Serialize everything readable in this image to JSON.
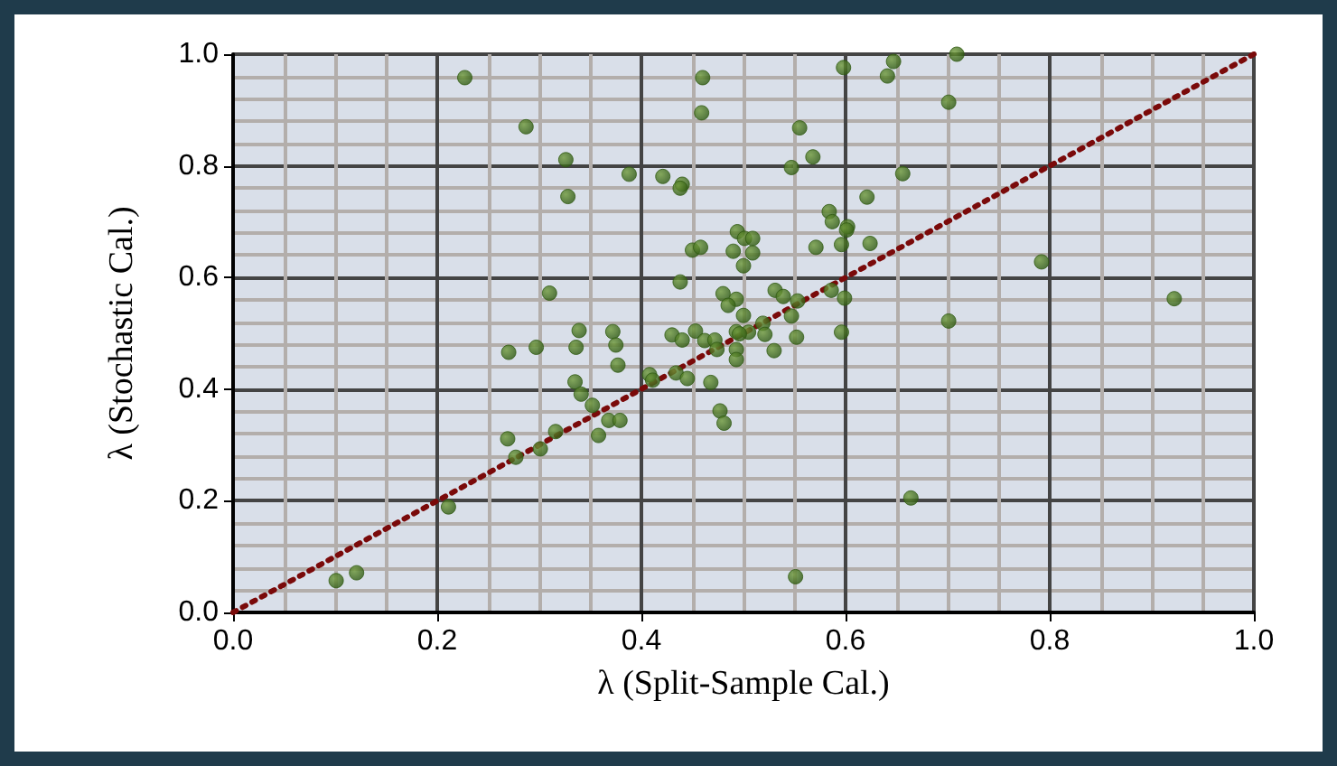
{
  "chart_data": {
    "type": "scatter",
    "xlabel": "λ (Split-Sample Cal.)",
    "ylabel": "λ (Stochastic Cal.)",
    "xlim": [
      0,
      1
    ],
    "ylim": [
      0,
      1
    ],
    "xticks": [
      {
        "value": 0,
        "label": "0.0"
      },
      {
        "value": 0.2,
        "label": "0.2"
      },
      {
        "value": 0.4,
        "label": "0.4"
      },
      {
        "value": 0.6,
        "label": "0.6"
      },
      {
        "value": 0.8,
        "label": "0.8"
      },
      {
        "value": 1,
        "label": "1.0"
      }
    ],
    "yticks": [
      {
        "value": 0,
        "label": "0.0"
      },
      {
        "value": 0.2,
        "label": "0.2"
      },
      {
        "value": 0.4,
        "label": "0.4"
      },
      {
        "value": 0.6,
        "label": "0.6"
      },
      {
        "value": 0.8,
        "label": "0.8"
      },
      {
        "value": 1,
        "label": "1.0"
      }
    ],
    "grid": true,
    "marker": "circle",
    "series": [
      {
        "color": "#2f5a12",
        "x": [
          0.227,
          0.46,
          0.459,
          0.287,
          0.326,
          0.388,
          0.421,
          0.44,
          0.438,
          0.328,
          0.494,
          0.501,
          0.509,
          0.45,
          0.458,
          0.49,
          0.509,
          0.5,
          0.438,
          0.31,
          0.48,
          0.493,
          0.485,
          0.5,
          0.493,
          0.339,
          0.372,
          0.43,
          0.44,
          0.453,
          0.462,
          0.472,
          0.27,
          0.297,
          0.336,
          0.375,
          0.377,
          0.474,
          0.493,
          0.493,
          0.505,
          0.335,
          0.341,
          0.352,
          0.368,
          0.379,
          0.358,
          0.316,
          0.269,
          0.277,
          0.301,
          0.408,
          0.411,
          0.434,
          0.445,
          0.468,
          0.477,
          0.481,
          0.211,
          0.101,
          0.121,
          0.598,
          0.647,
          0.641,
          0.709,
          0.701,
          0.555,
          0.568,
          0.547,
          0.656,
          0.621,
          0.584,
          0.587,
          0.602,
          0.601,
          0.571,
          0.596,
          0.624,
          0.792,
          0.922,
          0.701,
          0.531,
          0.539,
          0.553,
          0.586,
          0.599,
          0.547,
          0.519,
          0.521,
          0.496,
          0.552,
          0.596,
          0.53,
          0.664,
          0.551
        ],
        "values": [
          0.958,
          0.958,
          0.895,
          0.87,
          0.811,
          0.785,
          0.781,
          0.767,
          0.76,
          0.745,
          0.682,
          0.67,
          0.67,
          0.649,
          0.654,
          0.647,
          0.644,
          0.621,
          0.592,
          0.572,
          0.571,
          0.561,
          0.55,
          0.532,
          0.503,
          0.505,
          0.503,
          0.497,
          0.488,
          0.504,
          0.487,
          0.488,
          0.466,
          0.475,
          0.475,
          0.479,
          0.443,
          0.471,
          0.471,
          0.453,
          0.502,
          0.413,
          0.391,
          0.371,
          0.344,
          0.344,
          0.317,
          0.324,
          0.311,
          0.278,
          0.293,
          0.426,
          0.416,
          0.429,
          0.419,
          0.412,
          0.361,
          0.339,
          0.189,
          0.057,
          0.071,
          0.976,
          0.987,
          0.961,
          1.0,
          0.914,
          0.868,
          0.816,
          0.797,
          0.786,
          0.744,
          0.718,
          0.7,
          0.691,
          0.685,
          0.654,
          0.659,
          0.661,
          0.628,
          0.562,
          0.522,
          0.577,
          0.566,
          0.558,
          0.577,
          0.563,
          0.531,
          0.518,
          0.498,
          0.499,
          0.493,
          0.502,
          0.469,
          0.205,
          0.064
        ]
      },
      {
        "type": "line",
        "color": "#7a0a0a",
        "line_style": "dotted",
        "marker": "none",
        "x": [
          0,
          1
        ],
        "values": [
          0,
          1
        ]
      }
    ]
  }
}
